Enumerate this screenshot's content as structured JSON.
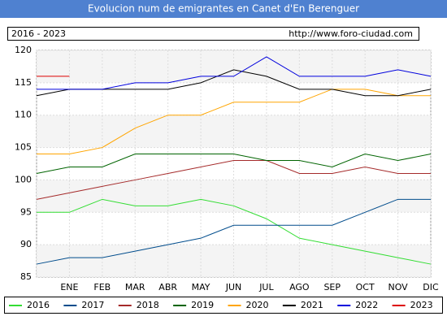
{
  "chart_data": {
    "type": "line",
    "title": "Evolucion num de emigrantes en Canet d'En Berenguer",
    "period": "2016 - 2023",
    "source": "http://www.foro-ciudad.com",
    "categories": [
      null,
      "ENE",
      "FEB",
      "MAR",
      "ABR",
      "MAY",
      "JUN",
      "JUL",
      "AGO",
      "SEP",
      "OCT",
      "NOV",
      "DIC"
    ],
    "ylim": [
      85,
      120
    ],
    "yticks": [
      85,
      90,
      95,
      100,
      105,
      110,
      115,
      120
    ],
    "grid": true,
    "series": [
      {
        "name": "2016",
        "color": "#33dd33",
        "values": [
          95,
          95,
          97,
          96,
          96,
          97,
          96,
          94,
          91,
          90,
          89,
          88,
          87
        ]
      },
      {
        "name": "2017",
        "color": "#004c8c",
        "values": [
          87,
          88,
          88,
          89,
          90,
          91,
          93,
          93,
          93,
          93,
          95,
          97,
          97
        ]
      },
      {
        "name": "2018",
        "color": "#a52a2a",
        "values": [
          97,
          98,
          99,
          100,
          101,
          102,
          103,
          103,
          101,
          101,
          102,
          101,
          101
        ]
      },
      {
        "name": "2019",
        "color": "#006400",
        "values": [
          101,
          102,
          102,
          104,
          104,
          104,
          104,
          103,
          103,
          102,
          104,
          103,
          104
        ]
      },
      {
        "name": "2020",
        "color": "#ffa500",
        "values": [
          104,
          104,
          105,
          108,
          110,
          110,
          112,
          112,
          112,
          114,
          114,
          113,
          113
        ]
      },
      {
        "name": "2021",
        "color": "#000000",
        "values": [
          113,
          114,
          114,
          114,
          114,
          115,
          117,
          116,
          114,
          114,
          113,
          113,
          114
        ]
      },
      {
        "name": "2022",
        "color": "#0000dd",
        "values": [
          114,
          114,
          114,
          115,
          115,
          116,
          116,
          119,
          116,
          116,
          116,
          117,
          116
        ]
      },
      {
        "name": "2023",
        "color": "#dd0000",
        "values": [
          116,
          116,
          null,
          null,
          null,
          null,
          null,
          null,
          null,
          null,
          null,
          null,
          null
        ]
      }
    ]
  }
}
